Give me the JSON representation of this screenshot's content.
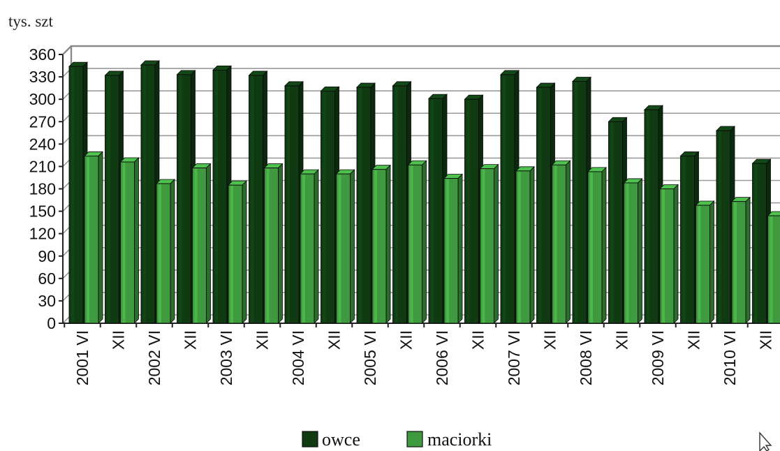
{
  "chart_data": {
    "type": "bar",
    "unit_label": "tys. szt",
    "categories": [
      "2001 VI",
      "XII",
      "2002 VI",
      "XII",
      "2003 VI",
      "XII",
      "2004 VI",
      "XII",
      "2005 VI",
      "XII",
      "2006 VI",
      "XII",
      "2007 VI",
      "XII",
      "2008 VI",
      "XII",
      "2009 VI",
      "XII",
      "2010 VI",
      "XII"
    ],
    "series": [
      {
        "name": "owce",
        "color": "#0f3a12",
        "values": [
          344,
          332,
          346,
          333,
          339,
          332,
          318,
          311,
          316,
          318,
          301,
          300,
          333,
          316,
          324,
          270,
          286,
          224,
          258,
          214
        ]
      },
      {
        "name": "maciorki",
        "color": "#3f9a3f",
        "values": [
          224,
          216,
          187,
          208,
          185,
          208,
          200,
          200,
          206,
          212,
          194,
          207,
          204,
          212,
          203,
          188,
          180,
          158,
          163,
          144
        ]
      }
    ],
    "ylim": [
      0,
      360
    ],
    "yticks": [
      "0",
      "30",
      "60",
      "90",
      "120",
      "150",
      "180",
      "210",
      "240",
      "270",
      "300",
      "330",
      "360"
    ],
    "grid": true,
    "legend_position": "bottom"
  }
}
